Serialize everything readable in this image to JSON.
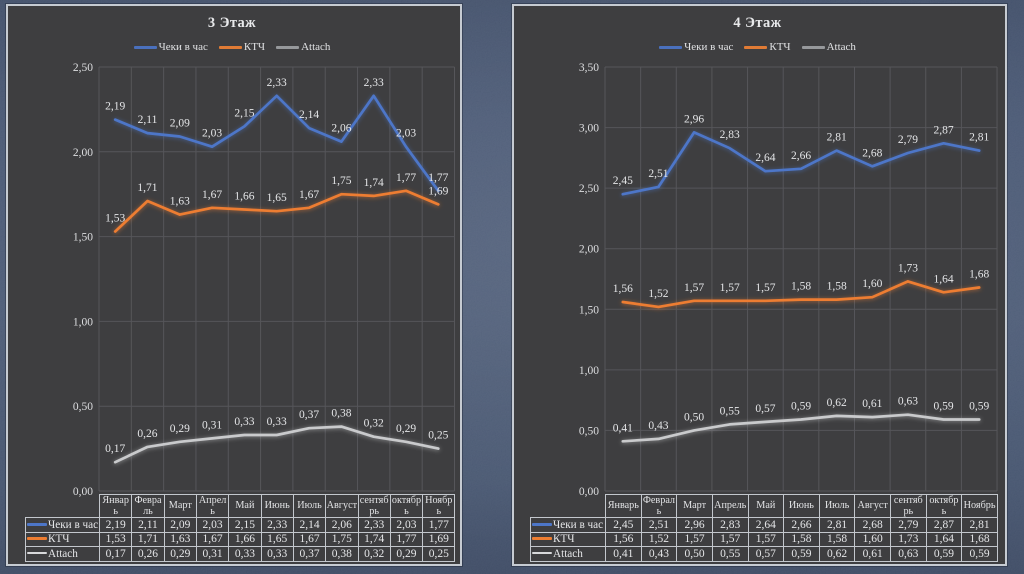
{
  "slide": {
    "background_color": "#46556f",
    "panel_color": "#3e3e40",
    "panel_border_color": "#c6cbd2",
    "gridline_color": "#56565a",
    "text_color": "#e5e6e8"
  },
  "chart_data": [
    {
      "type": "line",
      "title": "3 Этаж",
      "legend_position": "top",
      "grid": true,
      "ylim": [
        0,
        2.5
      ],
      "ytick_step": 0.5,
      "ytick_labels": [
        "2,50",
        "2,00",
        "1,50",
        "1,00",
        "0,50",
        "0,00"
      ],
      "number_format": "comma_decimal_2",
      "categories": [
        "Январь",
        "Февраль",
        "Март",
        "Апрель",
        "Май",
        "Июнь",
        "Июль",
        "Август",
        "сентябрь",
        "октябрь",
        "Ноябрь"
      ],
      "series": [
        {
          "name": "Чеки в час",
          "color": "#4d76c8",
          "key_color": "#4d76c8",
          "legend_color": "#4a70bd",
          "values": [
            2.19,
            2.11,
            2.09,
            2.03,
            2.15,
            2.33,
            2.14,
            2.06,
            2.33,
            2.03,
            1.77
          ],
          "labels": [
            "2,19",
            "2,11",
            "2,09",
            "2,03",
            "2,15",
            "2,33",
            "2,14",
            "2,06",
            "2,33",
            "2,03",
            "1,77"
          ]
        },
        {
          "name": "КТЧ",
          "color": "#ed7d31",
          "key_color": "#ed7d31",
          "legend_color": "#e07b35",
          "values": [
            1.53,
            1.71,
            1.63,
            1.67,
            1.66,
            1.65,
            1.67,
            1.75,
            1.74,
            1.77,
            1.69
          ],
          "labels": [
            "1,53",
            "1,71",
            "1,63",
            "1,67",
            "1,66",
            "1,65",
            "1,67",
            "1,75",
            "1,74",
            "1,77",
            "1,69"
          ]
        },
        {
          "name": "Attach",
          "color": "#c9cacc",
          "key_color": "#d8d9db",
          "legend_color": "#96989b",
          "values": [
            0.17,
            0.26,
            0.29,
            0.31,
            0.33,
            0.33,
            0.37,
            0.38,
            0.32,
            0.29,
            0.25
          ],
          "labels": [
            "0,17",
            "0,26",
            "0,29",
            "0,31",
            "0,33",
            "0,33",
            "0,37",
            "0,38",
            "0,32",
            "0,29",
            "0,25"
          ]
        }
      ]
    },
    {
      "type": "line",
      "title": "4 Этаж",
      "legend_position": "top",
      "grid": true,
      "ylim": [
        0,
        3.5
      ],
      "ytick_step": 0.5,
      "ytick_labels": [
        "3,50",
        "3,00",
        "2,50",
        "2,00",
        "1,50",
        "1,00",
        "0,50",
        "0,00"
      ],
      "number_format": "comma_decimal_2",
      "categories": [
        "Январь",
        "Февраль",
        "Март",
        "Апрель",
        "Май",
        "Июнь",
        "Июль",
        "Август",
        "сентябрь",
        "октябрь",
        "Ноябрь"
      ],
      "series": [
        {
          "name": "Чеки в час",
          "color": "#4d76c8",
          "key_color": "#4d76c8",
          "legend_color": "#4a70bd",
          "values": [
            2.45,
            2.51,
            2.96,
            2.83,
            2.64,
            2.66,
            2.81,
            2.68,
            2.79,
            2.87,
            2.81
          ],
          "labels": [
            "2,45",
            "2,51",
            "2,96",
            "2,83",
            "2,64",
            "2,66",
            "2,81",
            "2,68",
            "2,79",
            "2,87",
            "2,81"
          ]
        },
        {
          "name": "КТЧ",
          "color": "#ed7d31",
          "key_color": "#ed7d31",
          "legend_color": "#e07b35",
          "values": [
            1.56,
            1.52,
            1.57,
            1.57,
            1.57,
            1.58,
            1.58,
            1.6,
            1.73,
            1.64,
            1.68
          ],
          "labels": [
            "1,56",
            "1,52",
            "1,57",
            "1,57",
            "1,57",
            "1,58",
            "1,58",
            "1,60",
            "1,73",
            "1,64",
            "1,68"
          ]
        },
        {
          "name": "Attach",
          "color": "#c9cacc",
          "key_color": "#d8d9db",
          "legend_color": "#96989b",
          "values": [
            0.41,
            0.43,
            0.5,
            0.55,
            0.57,
            0.59,
            0.62,
            0.61,
            0.63,
            0.59,
            0.59
          ],
          "labels": [
            "0,41",
            "0,43",
            "0,50",
            "0,55",
            "0,57",
            "0,59",
            "0,62",
            "0,61",
            "0,63",
            "0,59",
            "0,59"
          ]
        }
      ]
    }
  ]
}
